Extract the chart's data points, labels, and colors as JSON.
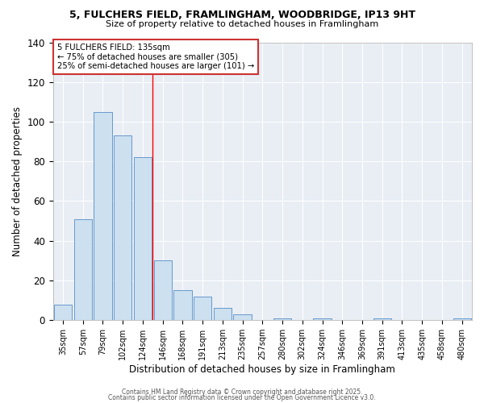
{
  "title_line1": "5, FULCHERS FIELD, FRAMLINGHAM, WOODBRIDGE, IP13 9HT",
  "title_line2": "Size of property relative to detached houses in Framlingham",
  "xlabel": "Distribution of detached houses by size in Framlingham",
  "ylabel": "Number of detached properties",
  "categories": [
    "35sqm",
    "57sqm",
    "79sqm",
    "102sqm",
    "124sqm",
    "146sqm",
    "168sqm",
    "191sqm",
    "213sqm",
    "235sqm",
    "257sqm",
    "280sqm",
    "302sqm",
    "324sqm",
    "346sqm",
    "369sqm",
    "391sqm",
    "413sqm",
    "435sqm",
    "458sqm",
    "480sqm"
  ],
  "values": [
    8,
    51,
    105,
    93,
    82,
    30,
    15,
    12,
    6,
    3,
    0,
    1,
    0,
    1,
    0,
    0,
    1,
    0,
    0,
    0,
    1
  ],
  "bar_color": "#cce0f0",
  "bar_edge_color": "#6699cc",
  "red_line_index": 4,
  "annotation_title": "5 FULCHERS FIELD: 135sqm",
  "annotation_line2": "← 75% of detached houses are smaller (305)",
  "annotation_line3": "25% of semi-detached houses are larger (101) →",
  "ylim": [
    0,
    140
  ],
  "yticks": [
    0,
    20,
    40,
    60,
    80,
    100,
    120,
    140
  ],
  "plot_bg_color": "#e8eef4",
  "fig_bg_color": "#ffffff",
  "grid_color": "#ffffff",
  "footer_line1": "Contains HM Land Registry data © Crown copyright and database right 2025.",
  "footer_line2": "Contains public sector information licensed under the Open Government Licence v3.0."
}
